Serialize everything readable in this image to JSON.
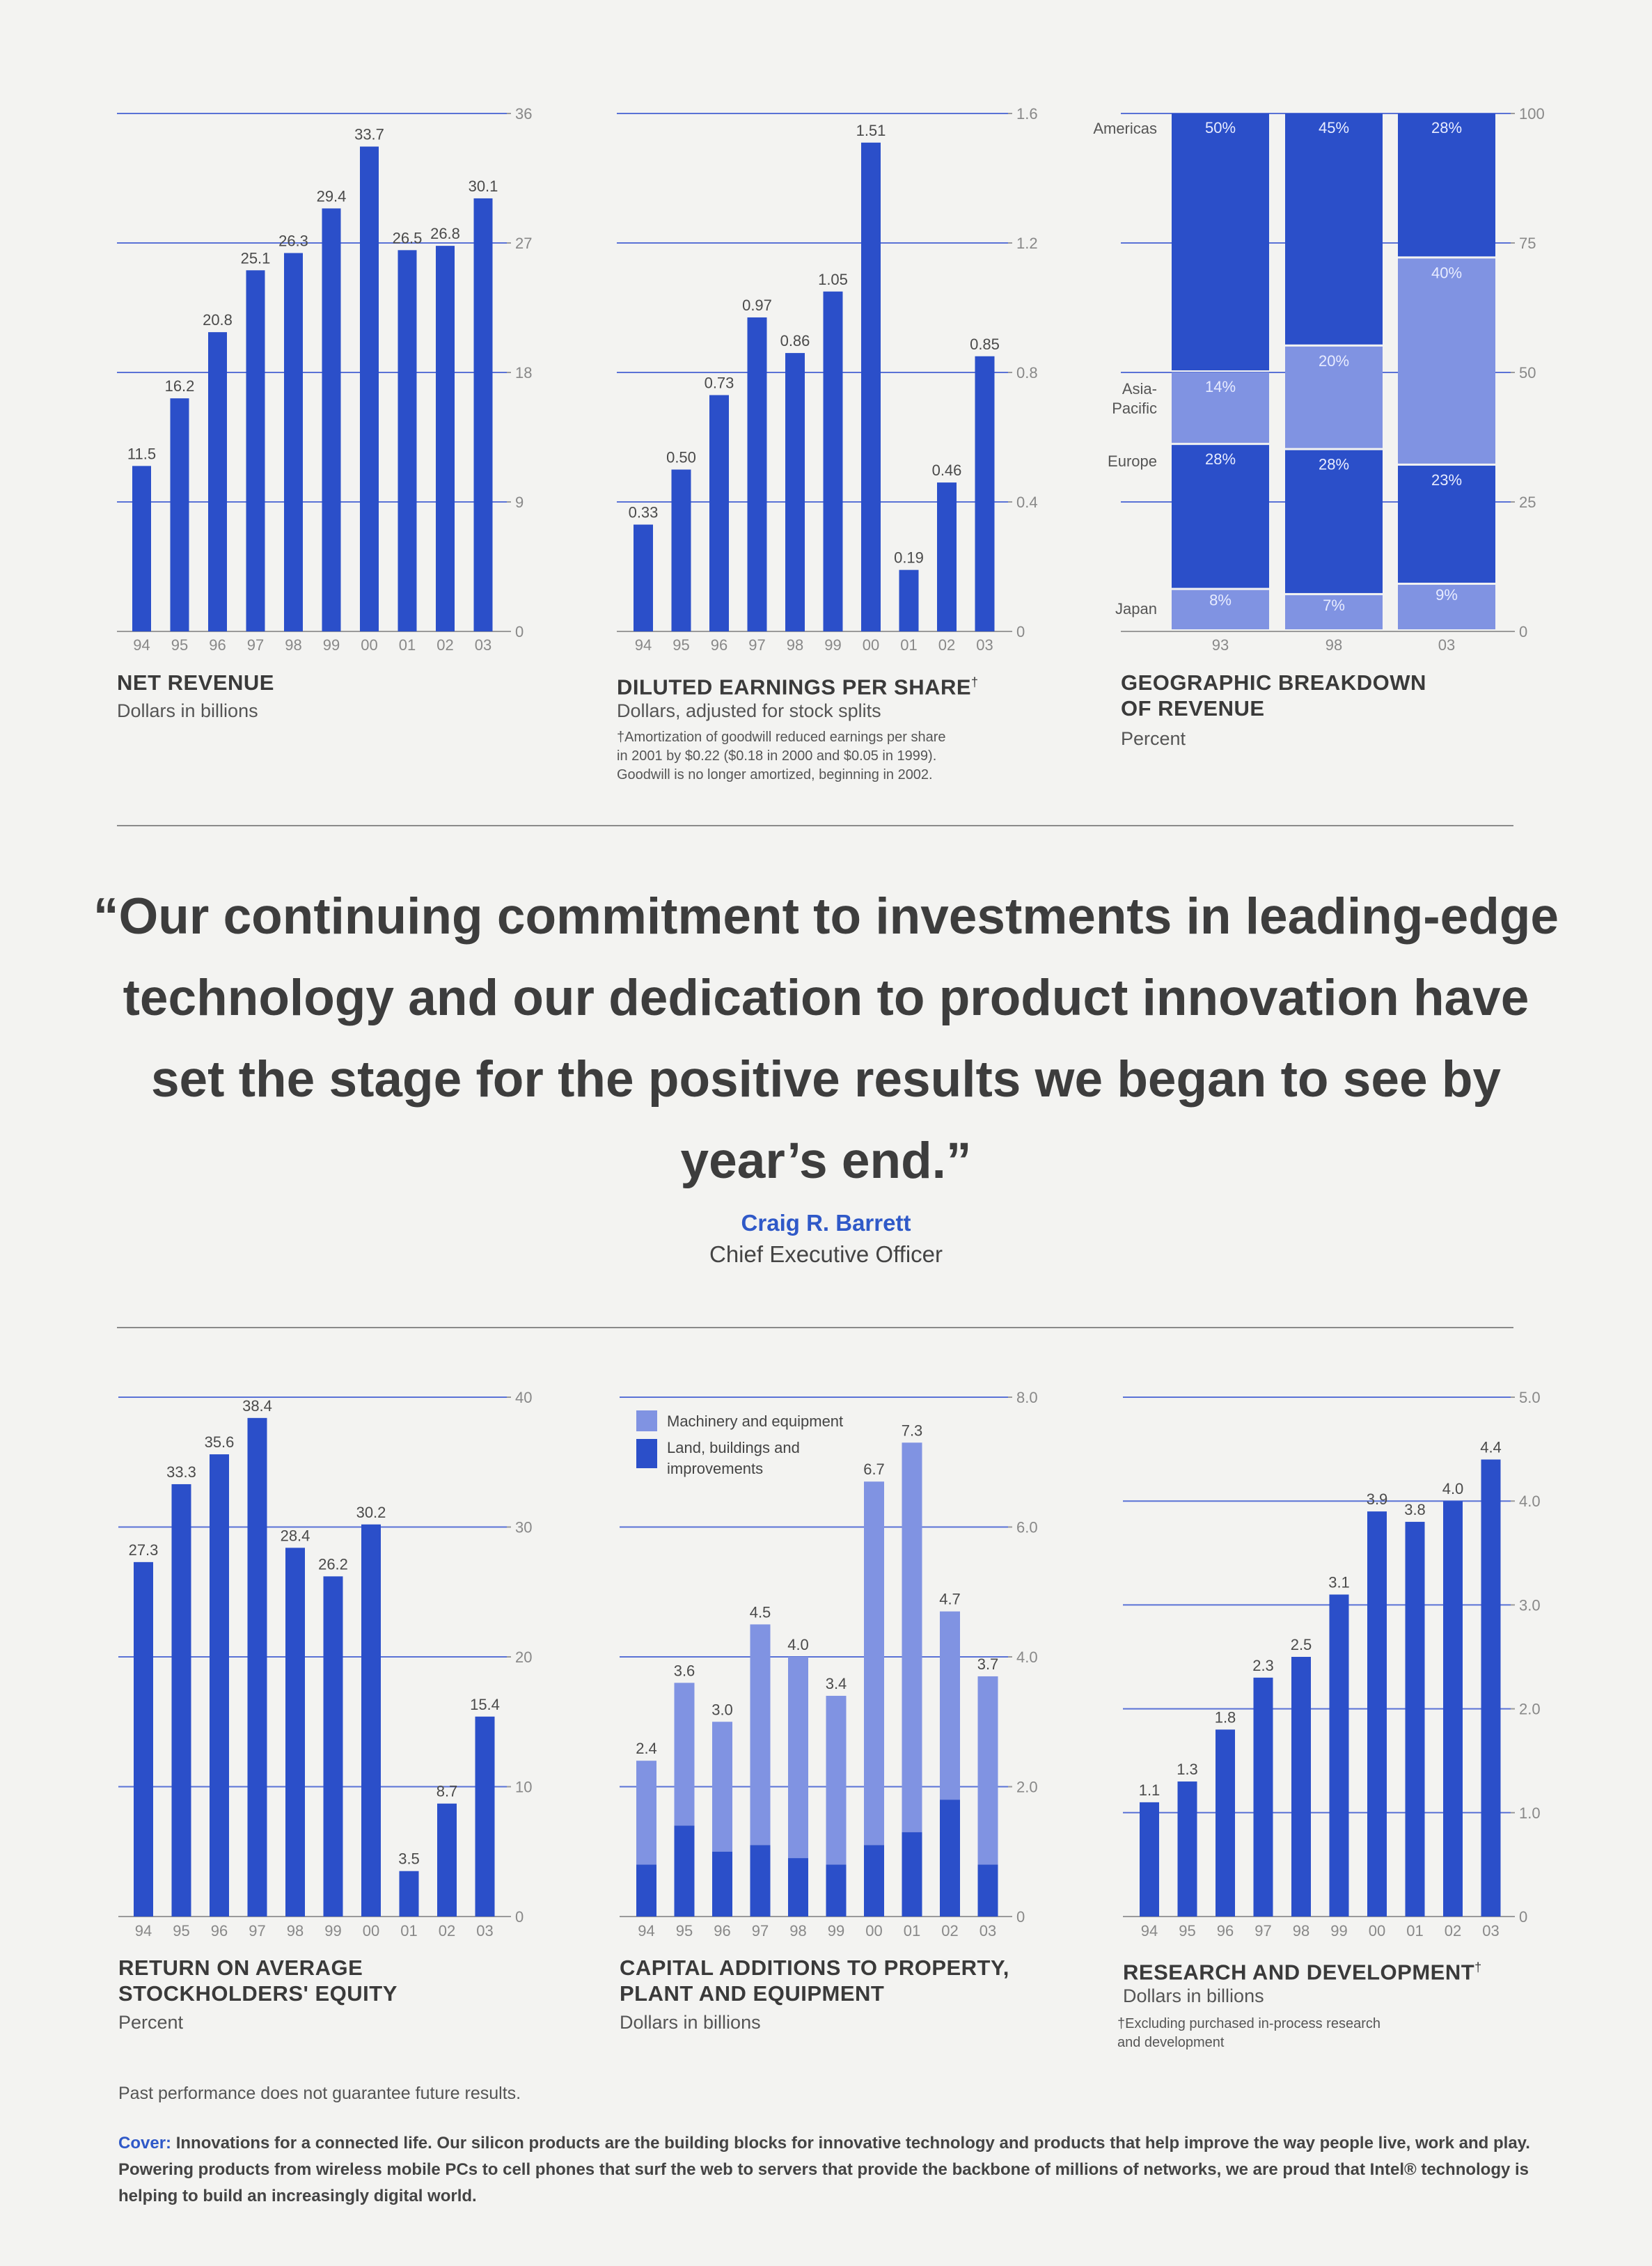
{
  "colors": {
    "dark_blue": "#2b4fc9",
    "light_blue": "#8093e2",
    "rule": "#8a8a8a",
    "accent_text": "#2f59c8"
  },
  "chart_data": [
    {
      "id": "net-revenue",
      "type": "bar",
      "title": "NET REVENUE",
      "subtitle": "Dollars in billions",
      "categories": [
        "94",
        "95",
        "96",
        "97",
        "98",
        "99",
        "00",
        "01",
        "02",
        "03"
      ],
      "values": [
        11.5,
        16.2,
        20.8,
        25.1,
        26.3,
        29.4,
        33.7,
        26.5,
        26.8,
        30.1
      ],
      "value_labels": [
        "11.5",
        "16.2",
        "20.8",
        "25.1",
        "26.3",
        "29.4",
        "33.7",
        "26.5",
        "26.8",
        "30.1"
      ],
      "ylim": [
        0,
        36
      ],
      "yticks": [
        0,
        9,
        18,
        27,
        36
      ],
      "ytick_labels": [
        "0",
        "9",
        "18",
        "27",
        "36"
      ],
      "grid": true
    },
    {
      "id": "diluted-eps",
      "type": "bar",
      "title": "DILUTED EARNINGS PER SHARE",
      "title_mark": "†",
      "subtitle": "Dollars, adjusted for stock splits",
      "note_lines": [
        "†Amortization of goodwill reduced earnings per share",
        "in 2001 by $0.22 ($0.18 in 2000 and $0.05 in 1999).",
        "Goodwill is no longer amortized, beginning in 2002."
      ],
      "categories": [
        "94",
        "95",
        "96",
        "97",
        "98",
        "99",
        "00",
        "01",
        "02",
        "03"
      ],
      "values": [
        0.33,
        0.5,
        0.73,
        0.97,
        0.86,
        1.05,
        1.51,
        0.19,
        0.46,
        0.85
      ],
      "value_labels": [
        "0.33",
        "0.50",
        "0.73",
        "0.97",
        "0.86",
        "1.05",
        "1.51",
        "0.19",
        "0.46",
        "0.85"
      ],
      "ylim": [
        0,
        1.6
      ],
      "yticks": [
        0,
        0.4,
        0.8,
        1.2,
        1.6
      ],
      "ytick_labels": [
        "0",
        "0.4",
        "0.8",
        "1.2",
        "1.6"
      ],
      "grid": true
    },
    {
      "id": "geographic-breakdown",
      "type": "bar",
      "stacked": true,
      "title_lines": [
        "GEOGRAPHIC BREAKDOWN",
        "OF REVENUE"
      ],
      "subtitle": "Percent",
      "categories": [
        "93",
        "98",
        "03"
      ],
      "series": [
        {
          "name": "Japan",
          "values": [
            8,
            7,
            9
          ],
          "labels": [
            "8%",
            "7%",
            "9%"
          ]
        },
        {
          "name": "Europe",
          "values": [
            28,
            28,
            23
          ],
          "labels": [
            "28%",
            "28%",
            "23%"
          ]
        },
        {
          "name": "Asia-Pacific",
          "name_lines": [
            "Asia-",
            "Pacific"
          ],
          "values": [
            14,
            20,
            40
          ],
          "labels": [
            "14%",
            "20%",
            "40%"
          ]
        },
        {
          "name": "Americas",
          "values": [
            50,
            45,
            28
          ],
          "labels": [
            "50%",
            "45%",
            "28%"
          ]
        }
      ],
      "ylim": [
        0,
        100
      ],
      "yticks": [
        0,
        25,
        50,
        75,
        100
      ],
      "ytick_labels": [
        "0",
        "25",
        "50",
        "75",
        "100"
      ],
      "grid": true
    },
    {
      "id": "return-on-equity",
      "type": "bar",
      "title_lines": [
        "RETURN ON AVERAGE",
        "STOCKHOLDERS' EQUITY"
      ],
      "subtitle": "Percent",
      "categories": [
        "94",
        "95",
        "96",
        "97",
        "98",
        "99",
        "00",
        "01",
        "02",
        "03"
      ],
      "values": [
        27.3,
        33.3,
        35.6,
        38.4,
        28.4,
        26.2,
        30.2,
        3.5,
        8.7,
        15.4
      ],
      "value_labels": [
        "27.3",
        "33.3",
        "35.6",
        "38.4",
        "28.4",
        "26.2",
        "30.2",
        "3.5",
        "8.7",
        "15.4"
      ],
      "ylim": [
        0,
        40
      ],
      "yticks": [
        0,
        10,
        20,
        30,
        40
      ],
      "ytick_labels": [
        "0",
        "10",
        "20",
        "30",
        "40"
      ],
      "grid": true
    },
    {
      "id": "capital-additions",
      "type": "bar",
      "stacked": true,
      "title_lines": [
        "CAPITAL ADDITIONS TO PROPERTY,",
        "PLANT AND EQUIPMENT"
      ],
      "subtitle": "Dollars in billions",
      "categories": [
        "94",
        "95",
        "96",
        "97",
        "98",
        "99",
        "00",
        "01",
        "02",
        "03"
      ],
      "totals": [
        2.4,
        3.6,
        3.0,
        4.5,
        4.0,
        3.4,
        6.7,
        7.3,
        4.7,
        3.7
      ],
      "total_labels": [
        "2.4",
        "3.6",
        "3.0",
        "4.5",
        "4.0",
        "3.4",
        "6.7",
        "7.3",
        "4.7",
        "3.7"
      ],
      "series": [
        {
          "name": "Land, buildings and improvements",
          "name_lines": [
            "Land, buildings and",
            "improvements"
          ],
          "values": [
            0.8,
            1.4,
            1.0,
            1.1,
            0.9,
            0.8,
            1.1,
            1.3,
            1.8,
            0.8
          ]
        },
        {
          "name": "Machinery and equipment",
          "name_lines": [
            "Machinery and equipment"
          ],
          "values": [
            1.6,
            2.2,
            2.0,
            3.4,
            3.1,
            2.6,
            5.6,
            6.0,
            2.9,
            2.9
          ]
        }
      ],
      "legend": "top-left",
      "ylim": [
        0,
        8
      ],
      "yticks": [
        0,
        2,
        4,
        6,
        8
      ],
      "ytick_labels": [
        "0",
        "2.0",
        "4.0",
        "6.0",
        "8.0"
      ],
      "grid": true
    },
    {
      "id": "research-development",
      "type": "bar",
      "title": "RESEARCH AND DEVELOPMENT",
      "title_mark": "†",
      "subtitle": "Dollars in billions",
      "note_lines": [
        "†Excluding purchased in-process research",
        "and development"
      ],
      "categories": [
        "94",
        "95",
        "96",
        "97",
        "98",
        "99",
        "00",
        "01",
        "02",
        "03"
      ],
      "values": [
        1.1,
        1.3,
        1.8,
        2.3,
        2.5,
        3.1,
        3.9,
        3.8,
        4.0,
        4.4
      ],
      "value_labels": [
        "1.1",
        "1.3",
        "1.8",
        "2.3",
        "2.5",
        "3.1",
        "3.9",
        "3.8",
        "4.0",
        "4.4"
      ],
      "ylim": [
        0,
        5
      ],
      "yticks": [
        0,
        1,
        2,
        3,
        4,
        5
      ],
      "ytick_labels": [
        "0",
        "1.0",
        "2.0",
        "3.0",
        "4.0",
        "5.0"
      ],
      "grid": true
    }
  ],
  "quote": {
    "text": "“Our continuing commitment to investments in leading-edge technology and our dedication to product innovation have set the stage for the positive results we began to see by year’s end.”",
    "author": "Craig R. Barrett",
    "role": "Chief Executive Officer"
  },
  "disclaimer": "Past performance does not guarantee future results.",
  "cover": {
    "label": "Cover:",
    "text": "Innovations for a connected life. Our silicon products are the building blocks for innovative technology and products that help improve the way people live, work and play. Powering products from wireless mobile PCs to cell phones that surf the web to servers that provide the backbone of millions of networks, we are proud that Intel® technology is helping to build an increasingly digital world."
  }
}
